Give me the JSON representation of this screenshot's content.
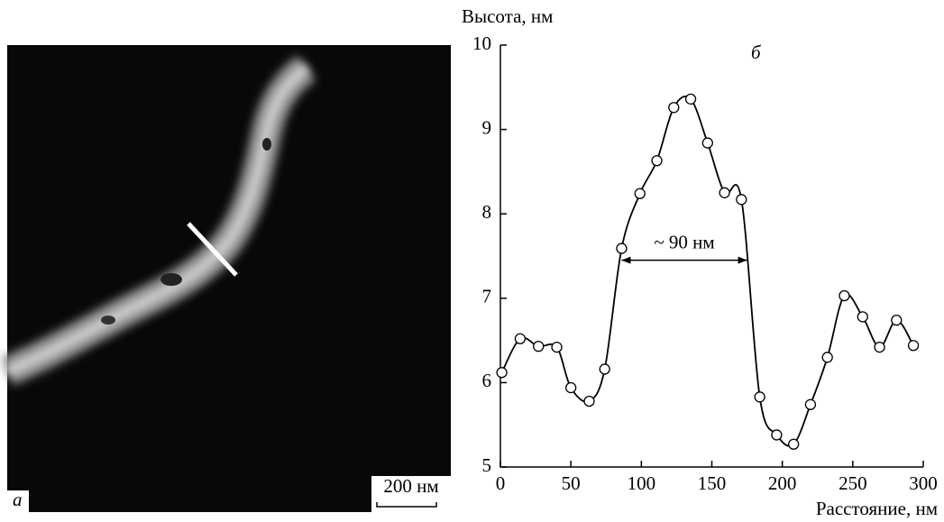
{
  "image_panel": {
    "label": "а",
    "scale_bar": "200 нм"
  },
  "chart_data": {
    "type": "line",
    "panel_label": "б",
    "y_label": "Высота, нм",
    "x_label": "Расстояние, нм",
    "x": [
      1,
      14,
      27,
      40,
      50,
      63,
      74,
      86,
      99,
      111,
      123,
      135,
      147,
      159,
      171,
      184,
      196,
      208,
      220,
      232,
      244,
      257,
      269,
      281,
      293
    ],
    "series": [
      {
        "color": "#000000",
        "values": [
          6.12,
          6.52,
          6.43,
          6.42,
          5.94,
          5.78,
          6.16,
          7.59,
          8.24,
          8.63,
          9.26,
          9.36,
          8.84,
          8.25,
          8.17,
          5.83,
          5.38,
          5.27,
          5.74,
          6.3,
          7.03,
          6.78,
          6.42,
          6.74,
          6.44
        ]
      }
    ],
    "annotation": {
      "text": "~ 90 нм",
      "x": [
        86,
        175
      ],
      "y": 7.45
    },
    "xlim": [
      0,
      300
    ],
    "ylim": [
      5,
      10
    ],
    "xticks": [
      0,
      50,
      100,
      150,
      200,
      250,
      300
    ],
    "yticks": [
      5,
      6,
      7,
      8,
      9,
      10
    ]
  }
}
